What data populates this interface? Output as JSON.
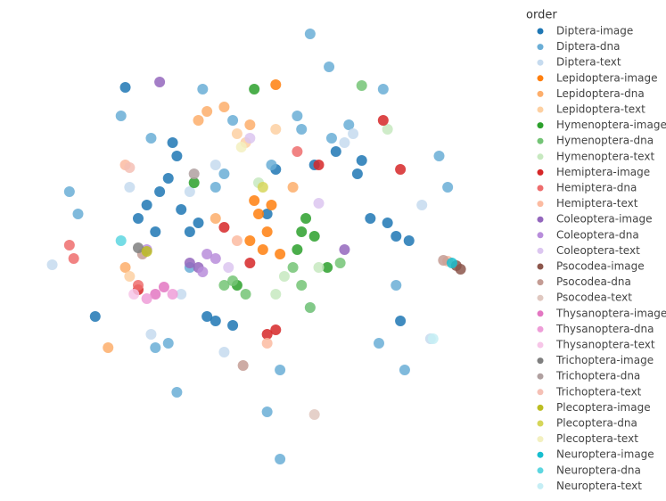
{
  "chart_data": {
    "type": "scatter",
    "legend_title": "order",
    "legend": "right",
    "xlim": [
      0,
      560
    ],
    "ylim": [
      562,
      0
    ],
    "series": [
      {
        "name": "Diptera-image",
        "color": "#1f77b4",
        "x": [
          185,
          175,
          150,
          190,
          200,
          160,
          230,
          250,
          370,
          395,
          410,
          440,
          445,
          125,
          300,
          290,
          345,
          90,
          400,
          180,
          165,
          210,
          140,
          220,
          430,
          455
        ],
        "y": [
          175,
          200,
          230,
          235,
          260,
          260,
          360,
          365,
          170,
          195,
          245,
          265,
          360,
          98,
          190,
          240,
          185,
          355,
          180,
          160,
          215,
          250,
          245,
          355,
          250,
          270
        ]
      },
      {
        "name": "Diptera-dna",
        "color": "#6aaed6",
        "x": [
          340,
          362,
          425,
          330,
          295,
          385,
          365,
          240,
          230,
          160,
          175,
          305,
          290,
          305,
          440,
          420,
          70,
          60,
          185,
          450,
          500,
          120,
          325,
          215,
          250,
          155,
          200,
          490
        ],
        "y": [
          38,
          75,
          100,
          145,
          185,
          140,
          155,
          195,
          210,
          390,
          385,
          415,
          462,
          515,
          320,
          385,
          240,
          215,
          440,
          415,
          210,
          130,
          130,
          100,
          135,
          155,
          300,
          175
        ]
      },
      {
        "name": "Diptera-text",
        "color": "#c6dbef",
        "x": [
          200,
          130,
          40,
          240,
          155,
          480,
          190,
          470,
          390,
          340,
          230,
          380
        ],
        "y": [
          215,
          210,
          297,
          395,
          375,
          380,
          330,
          230,
          150,
          345,
          185,
          160
        ]
      },
      {
        "name": "Lepidoptera-image",
        "color": "#ff7f0e",
        "x": [
          280,
          290,
          305,
          300,
          275,
          270,
          295,
          285
        ],
        "y": [
          240,
          260,
          285,
          95,
          225,
          270,
          230,
          280
        ]
      },
      {
        "name": "Lepidoptera-dna",
        "color": "#fdae6b",
        "x": [
          220,
          240,
          270,
          320,
          125,
          105,
          230,
          210
        ],
        "y": [
          125,
          120,
          140,
          210,
          300,
          390,
          245,
          135
        ]
      },
      {
        "name": "Lepidoptera-text",
        "color": "#fdd0a2",
        "x": [
          255,
          265,
          300,
          130
        ],
        "y": [
          150,
          160,
          145,
          310
        ]
      },
      {
        "name": "Hymenoptera-image",
        "color": "#2ca02c",
        "x": [
          330,
          345,
          325,
          360,
          255,
          275,
          205,
          335
        ],
        "y": [
          260,
          265,
          280,
          300,
          320,
          100,
          205,
          245
        ]
      },
      {
        "name": "Hymenoptera-dna",
        "color": "#74c476",
        "x": [
          320,
          330,
          340,
          250,
          240,
          400,
          375,
          265
        ],
        "y": [
          300,
          320,
          345,
          315,
          320,
          96,
          295,
          330
        ]
      },
      {
        "name": "Hymenoptera-text",
        "color": "#c7e9c0",
        "x": [
          310,
          300,
          350,
          430,
          280
        ],
        "y": [
          310,
          330,
          300,
          145,
          205
        ]
      },
      {
        "name": "Hemiptera-image",
        "color": "#d62728",
        "x": [
          140,
          300,
          290,
          350,
          425,
          445,
          240,
          270
        ],
        "y": [
          325,
          370,
          375,
          185,
          135,
          190,
          255,
          295
        ]
      },
      {
        "name": "Hemiptera-dna",
        "color": "#ee6d6d",
        "x": [
          60,
          65,
          325,
          140
        ],
        "y": [
          275,
          290,
          170,
          320
        ]
      },
      {
        "name": "Hemiptera-text",
        "color": "#fcbba1",
        "x": [
          125,
          290,
          500,
          255
        ],
        "y": [
          185,
          385,
          293,
          270
        ]
      },
      {
        "name": "Coleoptera-image",
        "color": "#9467bd",
        "x": [
          210,
          200,
          165,
          380
        ],
        "y": [
          300,
          295,
          92,
          280
        ]
      },
      {
        "name": "Coleoptera-dna",
        "color": "#b88ddb",
        "x": [
          220,
          230,
          215,
          150
        ],
        "y": [
          285,
          290,
          305,
          280
        ]
      },
      {
        "name": "Coleoptera-text",
        "color": "#dcc6f0",
        "x": [
          350,
          270,
          245
        ],
        "y": [
          228,
          155,
          300
        ]
      },
      {
        "name": "Psocodea-image",
        "color": "#8c564b",
        "x": [
          510,
          515
        ],
        "y": [
          298,
          302
        ]
      },
      {
        "name": "Psocodea-dna",
        "color": "#c49c94",
        "x": [
          262,
          495,
          145
        ],
        "y": [
          410,
          292,
          285
        ]
      },
      {
        "name": "Psocodea-text",
        "color": "#e0c8c0",
        "x": [
          345
        ],
        "y": [
          465
        ]
      },
      {
        "name": "Thysanoptera-image",
        "color": "#e377c2",
        "x": [
          160,
          170
        ],
        "y": [
          330,
          322
        ]
      },
      {
        "name": "Thysanoptera-dna",
        "color": "#ee9ed8",
        "x": [
          150,
          180
        ],
        "y": [
          335,
          330
        ]
      },
      {
        "name": "Thysanoptera-text",
        "color": "#f7c6e8",
        "x": [
          135
        ],
        "y": [
          330
        ]
      },
      {
        "name": "Trichoptera-image",
        "color": "#7f7f7f",
        "x": [
          140
        ],
        "y": [
          278
        ]
      },
      {
        "name": "Trichoptera-dna",
        "color": "#b0a0a0",
        "x": [
          205
        ],
        "y": [
          195
        ]
      },
      {
        "name": "Trichoptera-text",
        "color": "#f5c0b5",
        "x": [
          130
        ],
        "y": [
          188
        ]
      },
      {
        "name": "Plecoptera-image",
        "color": "#bcbd22",
        "x": [
          150
        ],
        "y": [
          282
        ]
      },
      {
        "name": "Plecoptera-dna",
        "color": "#d6d65a",
        "x": [
          285
        ],
        "y": [
          210
        ]
      },
      {
        "name": "Plecoptera-text",
        "color": "#f3f0c0",
        "x": [
          260
        ],
        "y": [
          165
        ]
      },
      {
        "name": "Neuroptera-image",
        "color": "#17becf",
        "x": [
          505
        ],
        "y": [
          295
        ]
      },
      {
        "name": "Neuroptera-dna",
        "color": "#5dd6e0",
        "x": [
          120
        ],
        "y": [
          270
        ]
      },
      {
        "name": "Neuroptera-text",
        "color": "#c5eef5",
        "x": [
          483
        ],
        "y": [
          380
        ]
      }
    ]
  }
}
